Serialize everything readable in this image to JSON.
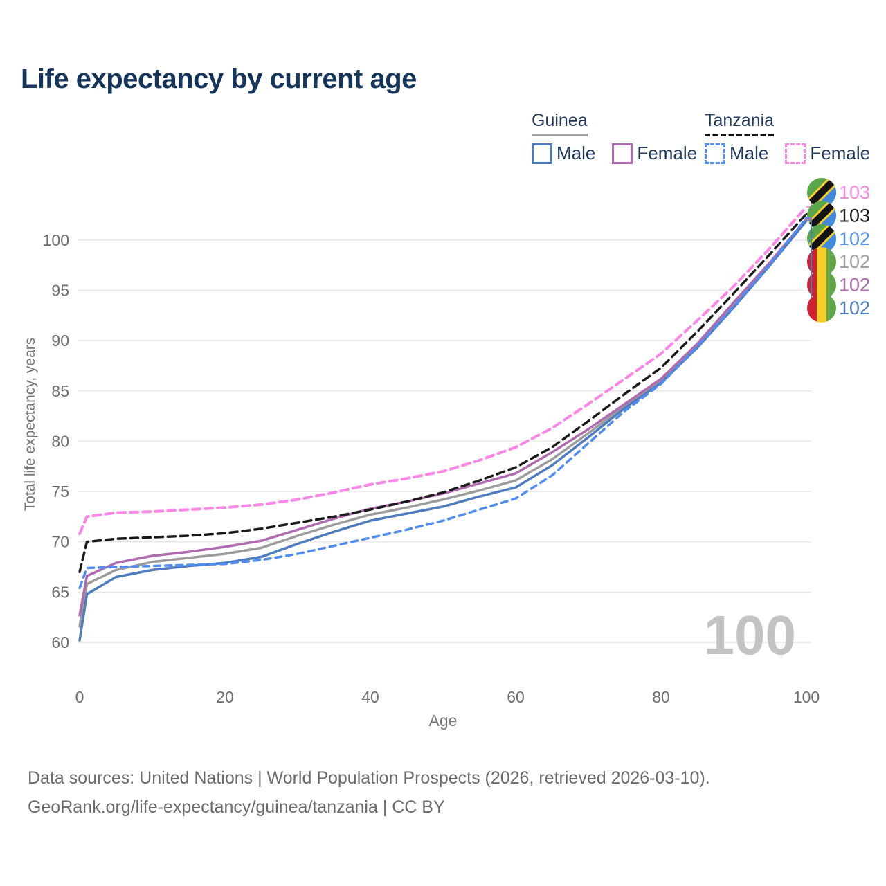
{
  "title": "Life expectancy by current age",
  "legend": {
    "guinea": {
      "label": "Guinea",
      "male_label": "Male",
      "female_label": "Female"
    },
    "tanzania": {
      "label": "Tanzania",
      "male_label": "Male",
      "female_label": "Female"
    }
  },
  "axes": {
    "y_label": "Total life expectancy, years",
    "x_label": "Age",
    "y_ticks": [
      60,
      65,
      70,
      75,
      80,
      85,
      90,
      95,
      100
    ],
    "x_ticks": [
      0,
      20,
      40,
      60,
      80,
      100
    ]
  },
  "watermark": "100",
  "colors": {
    "guinea_male": "#4d7cbf",
    "guinea_female": "#b06ab0",
    "guinea_total": "#9c9c9c",
    "tanzania_male": "#4f8df2",
    "tanzania_female": "#fc85e8",
    "tanzania_total": "#1a1a1a",
    "end_label_guinea_total": "#9e9e9e",
    "grid": "#e7e7e7",
    "axis_text": "#6e6e6e",
    "watermark_text": "#c3c3c3"
  },
  "end_labels": [
    {
      "text": "103",
      "flag": "tanzania",
      "series": "tanzania_female"
    },
    {
      "text": "103",
      "flag": "tanzania",
      "series": "tanzania_total"
    },
    {
      "text": "102",
      "flag": "tanzania",
      "series": "tanzania_male"
    },
    {
      "text": "102",
      "flag": "guinea",
      "series": "guinea_total"
    },
    {
      "text": "102",
      "flag": "guinea",
      "series": "guinea_female"
    },
    {
      "text": "102",
      "flag": "guinea",
      "series": "guinea_male"
    }
  ],
  "footer": {
    "line1": "Data sources: United Nations | World Population Prospects (2026, retrieved 2026-03-10).",
    "line2": "GeoRank.org/life-expectancy/guinea/tanzania | CC BY"
  },
  "chart_data": {
    "type": "line",
    "title": "Life expectancy by current age",
    "xlabel": "Age",
    "ylabel": "Total life expectancy, years",
    "xlim": [
      0,
      100
    ],
    "ylim": [
      59,
      104
    ],
    "grid": "horizontal",
    "legend_position": "top-right",
    "x": [
      0,
      1,
      5,
      10,
      15,
      20,
      25,
      30,
      35,
      40,
      45,
      50,
      55,
      60,
      65,
      70,
      75,
      80,
      85,
      90,
      95,
      100
    ],
    "series": [
      {
        "key": "guinea_total",
        "name": "Guinea Total",
        "color": "#9c9c9c",
        "dash": null,
        "width": 3.5,
        "values": [
          61.6,
          65.8,
          67.2,
          68.0,
          68.4,
          68.8,
          69.4,
          70.6,
          71.7,
          72.7,
          73.4,
          74.2,
          75.1,
          76.1,
          78.2,
          80.8,
          83.5,
          86.0,
          89.5,
          93.6,
          97.7,
          102.0
        ]
      },
      {
        "key": "guinea_female",
        "name": "Guinea Female",
        "color": "#b06ab0",
        "dash": null,
        "width": 3.5,
        "values": [
          62.7,
          66.6,
          67.9,
          68.6,
          69.0,
          69.5,
          70.1,
          71.2,
          72.3,
          73.3,
          74.0,
          74.8,
          75.8,
          76.8,
          78.9,
          81.2,
          83.7,
          86.2,
          89.7,
          93.8,
          97.8,
          102.1
        ]
      },
      {
        "key": "guinea_male",
        "name": "Guinea Male",
        "color": "#4d7cbf",
        "dash": null,
        "width": 3.5,
        "values": [
          60.2,
          64.8,
          66.5,
          67.2,
          67.6,
          67.9,
          68.5,
          69.8,
          71.0,
          72.1,
          72.8,
          73.5,
          74.5,
          75.4,
          77.6,
          80.4,
          83.3,
          85.8,
          89.3,
          93.3,
          97.5,
          101.9
        ]
      },
      {
        "key": "tanzania_total",
        "name": "Tanzania Total",
        "color": "#1a1a1a",
        "dash": "11 7",
        "width": 3.5,
        "values": [
          67.0,
          70.0,
          70.3,
          70.45,
          70.6,
          70.85,
          71.3,
          71.9,
          72.5,
          73.2,
          74.0,
          74.9,
          76.1,
          77.4,
          79.4,
          82.0,
          84.7,
          87.3,
          90.9,
          94.7,
          98.6,
          102.6
        ]
      },
      {
        "key": "tanzania_male",
        "name": "Tanzania Male",
        "color": "#4f8df2",
        "dash": "9 7",
        "width": 3.5,
        "values": [
          65.4,
          67.4,
          67.5,
          67.6,
          67.7,
          67.8,
          68.2,
          68.8,
          69.6,
          70.4,
          71.2,
          72.1,
          73.2,
          74.3,
          76.6,
          79.8,
          83.0,
          85.7,
          89.4,
          93.4,
          97.6,
          102.2
        ]
      },
      {
        "key": "tanzania_female",
        "name": "Tanzania Female",
        "color": "#fc85e8",
        "dash": "11 7",
        "width": 4,
        "values": [
          70.8,
          72.5,
          72.9,
          73.0,
          73.2,
          73.4,
          73.7,
          74.2,
          74.9,
          75.7,
          76.3,
          77.0,
          78.1,
          79.4,
          81.3,
          83.7,
          86.2,
          88.7,
          92.0,
          95.4,
          99.2,
          103.3
        ]
      }
    ]
  }
}
